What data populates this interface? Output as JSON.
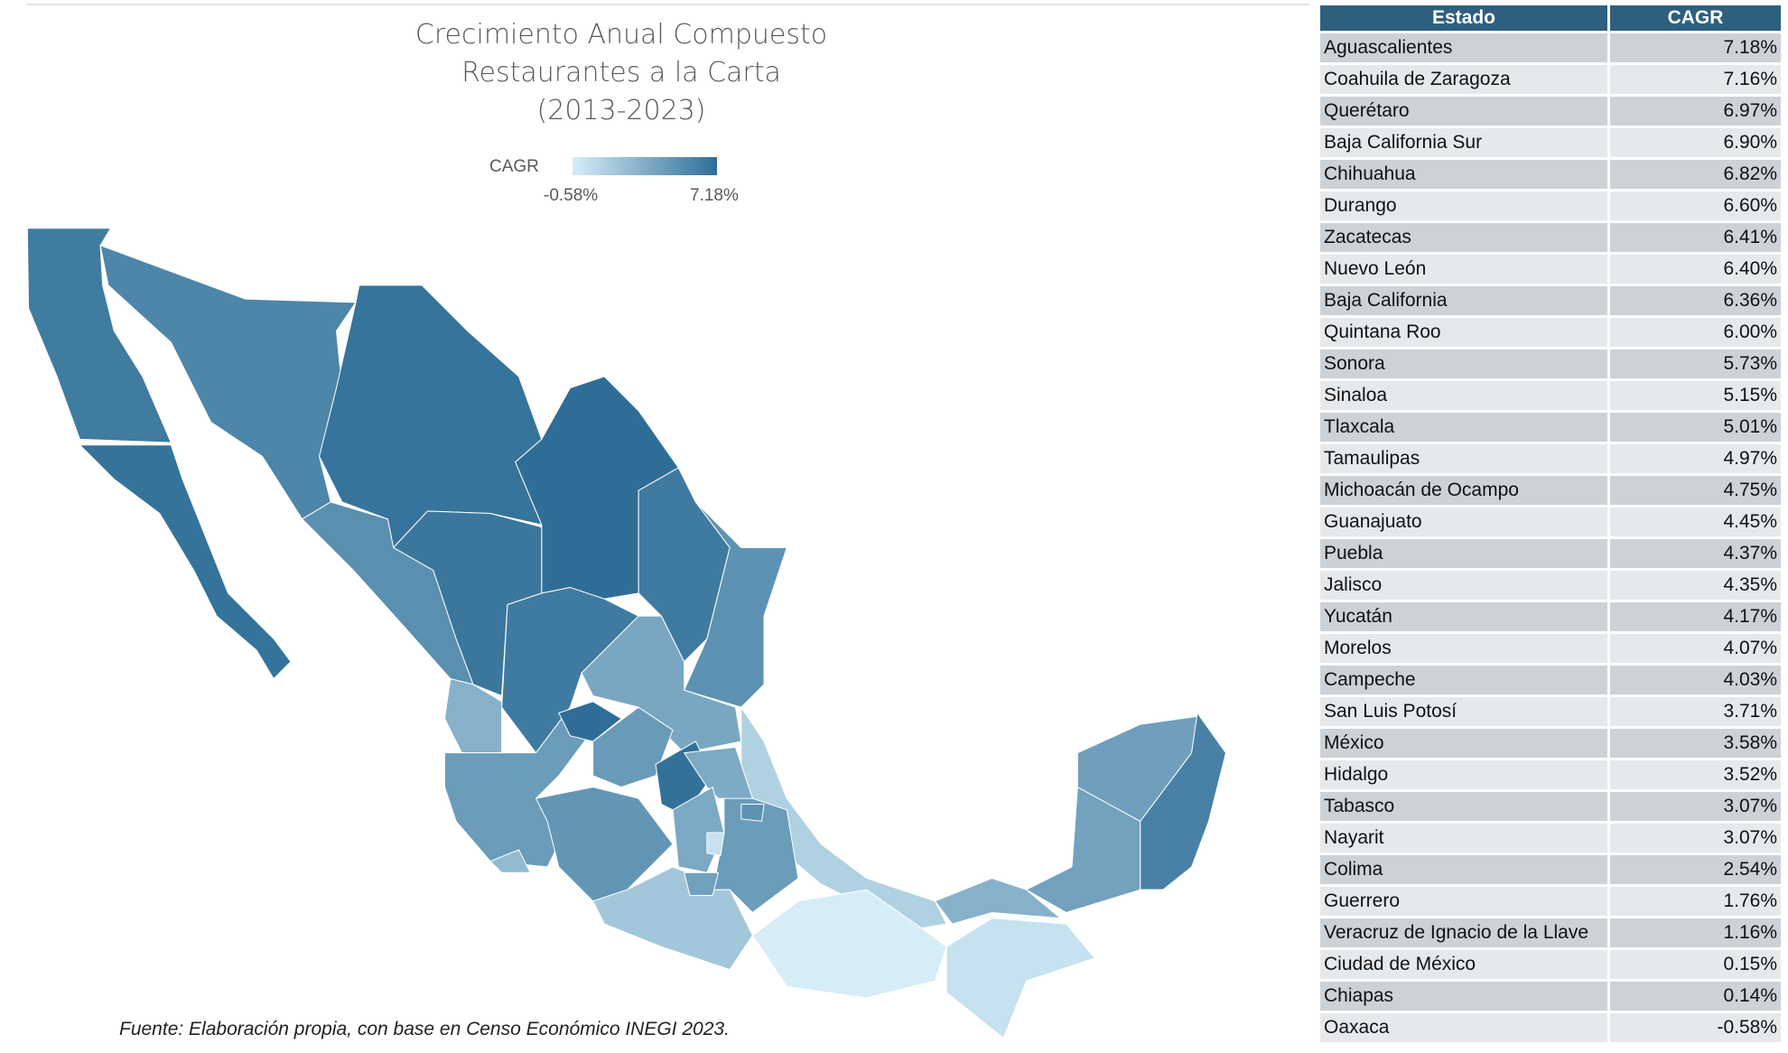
{
  "title_lines": [
    "Crecimiento Anual Compuesto",
    "Restaurantes a la Carta",
    "(2013-2023)"
  ],
  "legend": {
    "label": "CAGR",
    "min": "-0.58%",
    "max": "7.18%",
    "color_low": "#d6edf8",
    "color_high": "#2e6e96"
  },
  "source": "Fuente: Elaboración propia, con base en Censo Económico INEGI 2023.",
  "table": {
    "headers": [
      "Estado",
      "CAGR"
    ],
    "rows": [
      {
        "estado": "Aguascalientes",
        "cagr": "7.18%"
      },
      {
        "estado": "Coahuila de Zaragoza",
        "cagr": "7.16%"
      },
      {
        "estado": "Querétaro",
        "cagr": "6.97%"
      },
      {
        "estado": "Baja California Sur",
        "cagr": "6.90%"
      },
      {
        "estado": "Chihuahua",
        "cagr": "6.82%"
      },
      {
        "estado": "Durango",
        "cagr": "6.60%"
      },
      {
        "estado": "Zacatecas",
        "cagr": "6.41%"
      },
      {
        "estado": "Nuevo León",
        "cagr": "6.40%"
      },
      {
        "estado": "Baja California",
        "cagr": "6.36%"
      },
      {
        "estado": "Quintana Roo",
        "cagr": "6.00%"
      },
      {
        "estado": "Sonora",
        "cagr": "5.73%"
      },
      {
        "estado": "Sinaloa",
        "cagr": "5.15%"
      },
      {
        "estado": "Tlaxcala",
        "cagr": "5.01%"
      },
      {
        "estado": "Tamaulipas",
        "cagr": "4.97%"
      },
      {
        "estado": "Michoacán de Ocampo",
        "cagr": "4.75%"
      },
      {
        "estado": "Guanajuato",
        "cagr": "4.45%"
      },
      {
        "estado": "Puebla",
        "cagr": "4.37%"
      },
      {
        "estado": "Jalisco",
        "cagr": "4.35%"
      },
      {
        "estado": "Yucatán",
        "cagr": "4.17%"
      },
      {
        "estado": "Morelos",
        "cagr": "4.07%"
      },
      {
        "estado": "Campeche",
        "cagr": "4.03%"
      },
      {
        "estado": "San Luis Potosí",
        "cagr": "3.71%"
      },
      {
        "estado": "México",
        "cagr": "3.58%"
      },
      {
        "estado": "Hidalgo",
        "cagr": "3.52%"
      },
      {
        "estado": "Tabasco",
        "cagr": "3.07%"
      },
      {
        "estado": "Nayarit",
        "cagr": "3.07%"
      },
      {
        "estado": "Colima",
        "cagr": "2.54%"
      },
      {
        "estado": "Guerrero",
        "cagr": "1.76%"
      },
      {
        "estado": "Veracruz de Ignacio de la Llave",
        "cagr": "1.16%"
      },
      {
        "estado": "Ciudad de México",
        "cagr": "0.15%"
      },
      {
        "estado": "Chiapas",
        "cagr": "0.14%"
      },
      {
        "estado": "Oaxaca",
        "cagr": "-0.58%"
      }
    ]
  },
  "chart_data": {
    "type": "choropleth",
    "title": "Crecimiento Anual Compuesto Restaurantes a la Carta (2013-2023)",
    "value_label": "CAGR",
    "unit": "%",
    "range": [
      -0.58,
      7.18
    ],
    "values": {
      "Aguascalientes": 7.18,
      "Coahuila de Zaragoza": 7.16,
      "Querétaro": 6.97,
      "Baja California Sur": 6.9,
      "Chihuahua": 6.82,
      "Durango": 6.6,
      "Zacatecas": 6.41,
      "Nuevo León": 6.4,
      "Baja California": 6.36,
      "Quintana Roo": 6.0,
      "Sonora": 5.73,
      "Sinaloa": 5.15,
      "Tlaxcala": 5.01,
      "Tamaulipas": 4.97,
      "Michoacán de Ocampo": 4.75,
      "Guanajuato": 4.45,
      "Puebla": 4.37,
      "Jalisco": 4.35,
      "Yucatán": 4.17,
      "Morelos": 4.07,
      "Campeche": 4.03,
      "San Luis Potosí": 3.71,
      "México": 3.58,
      "Hidalgo": 3.52,
      "Tabasco": 3.07,
      "Nayarit": 3.07,
      "Colima": 2.54,
      "Guerrero": 1.76,
      "Veracruz de Ignacio de la Llave": 1.16,
      "Ciudad de México": 0.15,
      "Chiapas": 0.14,
      "Oaxaca": -0.58
    },
    "legend_placement": "top"
  }
}
